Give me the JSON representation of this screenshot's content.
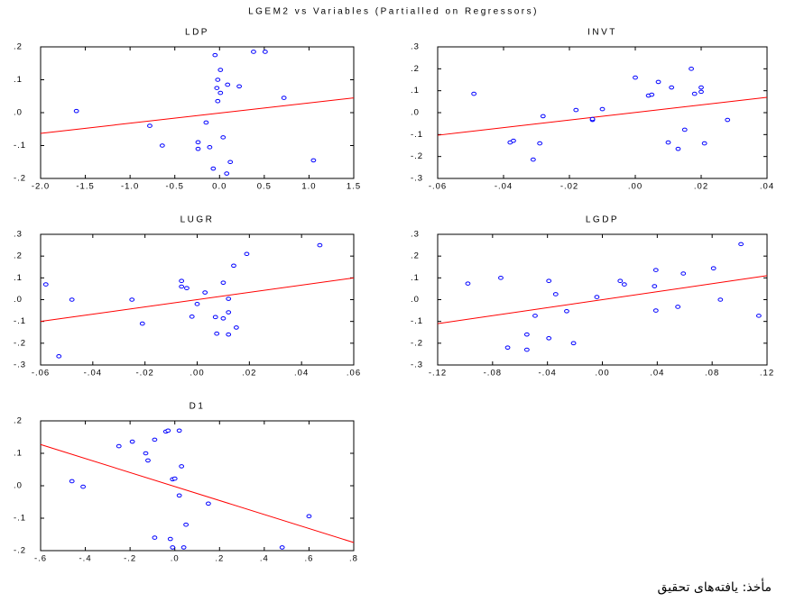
{
  "title": "LGEM2 vs Variables (Partialled on Regressors)",
  "source": "مأخذ: یافته‌های تحقیق",
  "chart_data": [
    {
      "type": "scatter",
      "title": "LDP",
      "color": "#0000ff",
      "x": [
        -1.6,
        -0.78,
        -0.64,
        -0.24,
        -0.24,
        -0.15,
        -0.11,
        -0.05,
        -0.07,
        0.01,
        -0.02,
        -0.03,
        0.01,
        -0.02,
        0.04,
        0.09,
        0.08,
        0.12,
        0.22,
        0.38,
        0.51,
        0.72,
        1.05
      ],
      "y": [
        0.005,
        -0.04,
        -0.1,
        -0.09,
        -0.11,
        -0.03,
        -0.105,
        0.175,
        -0.17,
        0.13,
        0.1,
        0.075,
        0.06,
        0.035,
        -0.075,
        0.085,
        -0.185,
        -0.15,
        0.08,
        0.185,
        0.185,
        0.045,
        -0.145
      ],
      "fit": {
        "x": [
          -2.0,
          1.5
        ],
        "y": [
          -0.063,
          0.045
        ],
        "color": "#ff0000"
      },
      "xlim": [
        -2.0,
        1.5
      ],
      "ylim": [
        -0.2,
        0.2
      ],
      "xticks": [
        {
          "value": -2.0,
          "label": "-2.0"
        },
        -1.5,
        {
          "value": -1.0,
          "label": "-1.0"
        },
        -0.5,
        {
          "value": 0,
          "label": "0.0"
        },
        0.5,
        {
          "value": 1.0,
          "label": "1.0"
        },
        1.5
      ],
      "yticks": [
        {
          "value": -0.2,
          "label": "-.2"
        },
        {
          "value": -0.1,
          "label": "-.1"
        },
        {
          "value": 0,
          "label": ".0"
        },
        {
          "value": 0.1,
          "label": ".1"
        },
        {
          "value": 0.2,
          "label": ".2"
        }
      ]
    },
    {
      "type": "scatter",
      "title": "INVT",
      "color": "#0000ff",
      "x": [
        -0.049,
        -0.038,
        -0.037,
        -0.031,
        -0.029,
        -0.028,
        -0.018,
        -0.013,
        -0.013,
        -0.01,
        0.0,
        0.004,
        0.005,
        0.007,
        0.011,
        0.01,
        0.013,
        0.015,
        0.017,
        0.018,
        0.02,
        0.02,
        0.021,
        0.028
      ],
      "y": [
        0.086,
        -0.136,
        -0.128,
        -0.214,
        -0.14,
        -0.016,
        0.012,
        -0.033,
        -0.029,
        0.016,
        0.16,
        0.078,
        0.082,
        0.14,
        0.115,
        -0.136,
        -0.165,
        -0.078,
        0.2,
        0.086,
        0.115,
        0.095,
        -0.14,
        -0.033
      ],
      "fit": {
        "x": [
          -0.06,
          0.04
        ],
        "y": [
          -0.103,
          0.07
        ],
        "color": "#ff0000"
      },
      "xlim": [
        -0.06,
        0.04
      ],
      "ylim": [
        -0.3,
        0.3
      ],
      "xticks": [
        {
          "value": -0.06,
          "label": "-.06"
        },
        {
          "value": -0.04,
          "label": "-.04"
        },
        {
          "value": -0.02,
          "label": "-.02"
        },
        {
          "value": 0,
          "label": ".00"
        },
        {
          "value": 0.02,
          "label": ".02"
        },
        {
          "value": 0.04,
          "label": ".04"
        }
      ],
      "yticks": [
        {
          "value": -0.3,
          "label": "-.3"
        },
        {
          "value": -0.2,
          "label": "-.2"
        },
        {
          "value": -0.1,
          "label": "-.1"
        },
        {
          "value": 0,
          "label": ".0"
        },
        {
          "value": 0.1,
          "label": ".1"
        },
        {
          "value": 0.2,
          "label": ".2"
        },
        {
          "value": 0.3,
          "label": ".3"
        }
      ]
    },
    {
      "type": "scatter",
      "title": "LUGR",
      "color": "#0000ff",
      "x": [
        -0.058,
        -0.053,
        -0.048,
        -0.025,
        -0.021,
        -0.006,
        -0.006,
        -0.004,
        -0.002,
        0.0,
        0.003,
        0.007,
        0.0075,
        0.01,
        0.01,
        0.012,
        0.012,
        0.012,
        0.014,
        0.015,
        0.019,
        0.047
      ],
      "y": [
        0.07,
        -0.26,
        0.0,
        0.0,
        -0.11,
        0.086,
        0.06,
        0.053,
        -0.078,
        -0.02,
        0.033,
        -0.08,
        -0.156,
        -0.086,
        0.078,
        0.004,
        -0.058,
        -0.16,
        0.156,
        -0.128,
        0.21,
        0.25
      ],
      "fit": {
        "x": [
          -0.06,
          0.06
        ],
        "y": [
          -0.1,
          0.1
        ],
        "color": "#ff0000"
      },
      "xlim": [
        -0.06,
        0.06
      ],
      "ylim": [
        -0.3,
        0.3
      ],
      "xticks": [
        {
          "value": -0.06,
          "label": "-.06"
        },
        {
          "value": -0.04,
          "label": "-.04"
        },
        {
          "value": -0.02,
          "label": "-.02"
        },
        {
          "value": 0,
          "label": ".00"
        },
        {
          "value": 0.02,
          "label": ".02"
        },
        {
          "value": 0.04,
          "label": ".04"
        },
        {
          "value": 0.06,
          "label": ".06"
        }
      ],
      "yticks": [
        {
          "value": -0.3,
          "label": "-.3"
        },
        {
          "value": -0.2,
          "label": "-.2"
        },
        {
          "value": -0.1,
          "label": "-.1"
        },
        {
          "value": 0,
          "label": ".0"
        },
        {
          "value": 0.1,
          "label": ".1"
        },
        {
          "value": 0.2,
          "label": ".2"
        },
        {
          "value": 0.3,
          "label": ".3"
        }
      ]
    },
    {
      "type": "scatter",
      "title": "LGDP",
      "color": "#0000ff",
      "x": [
        -0.098,
        -0.074,
        -0.069,
        -0.055,
        -0.055,
        -0.049,
        -0.039,
        -0.039,
        -0.034,
        -0.026,
        -0.021,
        -0.004,
        0.013,
        0.016,
        0.038,
        0.039,
        0.039,
        0.055,
        0.059,
        0.081,
        0.086,
        0.101,
        0.114
      ],
      "y": [
        0.074,
        0.1,
        -0.22,
        -0.23,
        -0.16,
        -0.074,
        0.086,
        -0.177,
        0.025,
        -0.053,
        -0.2,
        0.012,
        0.086,
        0.07,
        0.062,
        0.136,
        -0.05,
        -0.033,
        0.12,
        0.144,
        0.0,
        0.255,
        -0.074
      ],
      "fit": {
        "x": [
          -0.12,
          0.12
        ],
        "y": [
          -0.11,
          0.11
        ],
        "color": "#ff0000"
      },
      "xlim": [
        -0.12,
        0.12
      ],
      "ylim": [
        -0.3,
        0.3
      ],
      "xticks": [
        {
          "value": -0.12,
          "label": "-.12"
        },
        {
          "value": -0.08,
          "label": "-.08"
        },
        {
          "value": -0.04,
          "label": "-.04"
        },
        {
          "value": 0,
          "label": ".00"
        },
        {
          "value": 0.04,
          "label": ".04"
        },
        {
          "value": 0.08,
          "label": ".08"
        },
        {
          "value": 0.12,
          "label": ".12"
        }
      ],
      "yticks": [
        {
          "value": -0.3,
          "label": "-.3"
        },
        {
          "value": -0.2,
          "label": "-.2"
        },
        {
          "value": -0.1,
          "label": "-.1"
        },
        {
          "value": 0,
          "label": ".0"
        },
        {
          "value": 0.1,
          "label": ".1"
        },
        {
          "value": 0.2,
          "label": ".2"
        },
        {
          "value": 0.3,
          "label": ".3"
        }
      ]
    },
    {
      "type": "scatter",
      "title": "D1",
      "color": "#0000ff",
      "x": [
        -0.46,
        -0.41,
        -0.25,
        -0.19,
        -0.13,
        -0.12,
        -0.09,
        -0.09,
        -0.04,
        -0.03,
        -0.02,
        -0.01,
        -0.01,
        0.0,
        0.02,
        0.02,
        0.03,
        0.04,
        0.05,
        0.15,
        0.48,
        0.6
      ],
      "y": [
        0.014,
        -0.003,
        0.122,
        0.136,
        0.1,
        0.078,
        0.142,
        -0.16,
        0.167,
        0.17,
        -0.164,
        -0.19,
        0.02,
        0.022,
        0.17,
        -0.03,
        0.06,
        -0.19,
        -0.12,
        -0.055,
        -0.19,
        -0.094
      ],
      "fit": {
        "x": [
          -0.6,
          0.8
        ],
        "y": [
          0.127,
          -0.175
        ],
        "color": "#ff0000"
      },
      "xlim": [
        -0.6,
        0.8
      ],
      "ylim": [
        -0.2,
        0.2
      ],
      "xticks": [
        {
          "value": -0.6,
          "label": "-.6"
        },
        {
          "value": -0.4,
          "label": "-.4"
        },
        {
          "value": -0.2,
          "label": "-.2"
        },
        {
          "value": 0,
          "label": ".0"
        },
        {
          "value": 0.2,
          "label": ".2"
        },
        {
          "value": 0.4,
          "label": ".4"
        },
        {
          "value": 0.6,
          "label": ".6"
        },
        {
          "value": 0.8,
          "label": ".8"
        }
      ],
      "yticks": [
        {
          "value": -0.2,
          "label": "-.2"
        },
        {
          "value": -0.1,
          "label": "-.1"
        },
        {
          "value": 0,
          "label": ".0"
        },
        {
          "value": 0.1,
          "label": ".1"
        },
        {
          "value": 0.2,
          "label": ".2"
        }
      ]
    }
  ]
}
